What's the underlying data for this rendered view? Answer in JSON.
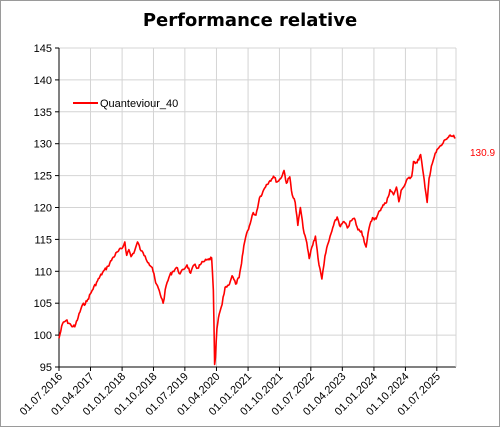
{
  "chart_data": {
    "type": "line",
    "title": "Performance relative",
    "xlabel": "",
    "ylabel": "",
    "ylim": [
      95,
      145
    ],
    "yticks": [
      95,
      100,
      105,
      110,
      115,
      120,
      125,
      130,
      135,
      140,
      145
    ],
    "xlim": [
      "2016-07-01",
      "2025-12-15"
    ],
    "xticks": [
      "01.07.2016",
      "01.04.2017",
      "01.01.2018",
      "01.10.2018",
      "01.07.2019",
      "01.04.2020",
      "01.01.2021",
      "01.10.2021",
      "01.07.2022",
      "01.04.2023",
      "01.01.2024",
      "01.10.2024",
      "01.07.2025"
    ],
    "grid": true,
    "legend": "top-left",
    "end_label": "130.9",
    "series": [
      {
        "name": "Quanteviour_40",
        "color": "#ff0000",
        "points": [
          [
            "2016-07-01",
            99.5
          ],
          [
            "2016-08-01",
            101.8
          ],
          [
            "2016-09-01",
            102.3
          ],
          [
            "2016-10-15",
            101.5
          ],
          [
            "2016-11-15",
            101.3
          ],
          [
            "2016-12-15",
            102.8
          ],
          [
            "2017-01-15",
            104.5
          ],
          [
            "2017-03-01",
            105.3
          ],
          [
            "2017-04-15",
            107.0
          ],
          [
            "2017-06-01",
            108.5
          ],
          [
            "2017-07-15",
            109.8
          ],
          [
            "2017-09-01",
            110.8
          ],
          [
            "2017-10-15",
            112.2
          ],
          [
            "2017-12-01",
            113.2
          ],
          [
            "2018-01-01",
            113.6
          ],
          [
            "2018-01-25",
            114.6
          ],
          [
            "2018-02-10",
            112.5
          ],
          [
            "2018-03-01",
            113.4
          ],
          [
            "2018-03-20",
            112.3
          ],
          [
            "2018-04-20",
            113.2
          ],
          [
            "2018-05-15",
            114.6
          ],
          [
            "2018-06-15",
            113.2
          ],
          [
            "2018-07-20",
            112.4
          ],
          [
            "2018-08-20",
            111.3
          ],
          [
            "2018-09-20",
            110.6
          ],
          [
            "2018-10-20",
            108.2
          ],
          [
            "2018-11-20",
            107.0
          ],
          [
            "2018-12-24",
            105.0
          ],
          [
            "2019-01-20",
            107.8
          ],
          [
            "2019-02-20",
            109.4
          ],
          [
            "2019-03-20",
            110.0
          ],
          [
            "2019-04-20",
            110.6
          ],
          [
            "2019-05-20",
            109.6
          ],
          [
            "2019-06-20",
            110.3
          ],
          [
            "2019-07-20",
            111.0
          ],
          [
            "2019-08-20",
            109.7
          ],
          [
            "2019-09-20",
            111.0
          ],
          [
            "2019-10-20",
            110.5
          ],
          [
            "2019-11-20",
            111.2
          ],
          [
            "2019-12-20",
            111.6
          ],
          [
            "2020-01-20",
            111.8
          ],
          [
            "2020-02-19",
            112.1
          ],
          [
            "2020-03-05",
            107.0
          ],
          [
            "2020-03-16",
            95.4
          ],
          [
            "2020-03-23",
            96.5
          ],
          [
            "2020-04-05",
            101.0
          ],
          [
            "2020-04-25",
            103.3
          ],
          [
            "2020-05-20",
            104.8
          ],
          [
            "2020-06-15",
            107.5
          ],
          [
            "2020-07-15",
            107.8
          ],
          [
            "2020-08-15",
            109.3
          ],
          [
            "2020-09-15",
            108.0
          ],
          [
            "2020-10-15",
            109.0
          ],
          [
            "2020-11-05",
            111.2
          ],
          [
            "2020-11-25",
            114.0
          ],
          [
            "2020-12-20",
            116.0
          ],
          [
            "2021-01-20",
            117.5
          ],
          [
            "2021-02-15",
            119.2
          ],
          [
            "2021-03-10",
            118.8
          ],
          [
            "2021-04-10",
            121.5
          ],
          [
            "2021-05-10",
            122.5
          ],
          [
            "2021-06-10",
            123.6
          ],
          [
            "2021-07-10",
            124.2
          ],
          [
            "2021-08-10",
            124.9
          ],
          [
            "2021-09-10",
            124.0
          ],
          [
            "2021-10-10",
            124.5
          ],
          [
            "2021-11-10",
            125.8
          ],
          [
            "2021-12-01",
            123.8
          ],
          [
            "2021-12-30",
            124.8
          ],
          [
            "2022-01-20",
            122.0
          ],
          [
            "2022-02-15",
            120.8
          ],
          [
            "2022-03-10",
            117.2
          ],
          [
            "2022-04-01",
            120.0
          ],
          [
            "2022-04-25",
            116.8
          ],
          [
            "2022-05-20",
            115.0
          ],
          [
            "2022-06-17",
            112.0
          ],
          [
            "2022-07-10",
            113.8
          ],
          [
            "2022-08-10",
            115.5
          ],
          [
            "2022-09-10",
            111.0
          ],
          [
            "2022-10-05",
            108.8
          ],
          [
            "2022-11-01",
            112.4
          ],
          [
            "2022-12-01",
            114.5
          ],
          [
            "2023-01-15",
            117.2
          ],
          [
            "2023-02-15",
            118.5
          ],
          [
            "2023-03-15",
            117.0
          ],
          [
            "2023-04-15",
            117.8
          ],
          [
            "2023-05-15",
            116.8
          ],
          [
            "2023-06-15",
            117.9
          ],
          [
            "2023-07-15",
            118.3
          ],
          [
            "2023-08-15",
            116.5
          ],
          [
            "2023-09-15",
            116.3
          ],
          [
            "2023-10-25",
            113.8
          ],
          [
            "2023-11-20",
            116.8
          ],
          [
            "2023-12-20",
            118.4
          ],
          [
            "2024-01-20",
            118.2
          ],
          [
            "2024-02-20",
            119.5
          ],
          [
            "2024-03-20",
            120.4
          ],
          [
            "2024-04-20",
            120.8
          ],
          [
            "2024-05-20",
            122.8
          ],
          [
            "2024-06-20",
            122.0
          ],
          [
            "2024-07-15",
            123.2
          ],
          [
            "2024-08-05",
            120.9
          ],
          [
            "2024-08-25",
            122.7
          ],
          [
            "2024-09-25",
            123.5
          ],
          [
            "2024-10-25",
            124.6
          ],
          [
            "2024-11-25",
            124.9
          ],
          [
            "2024-12-10",
            127.2
          ],
          [
            "2025-01-10",
            127.0
          ],
          [
            "2025-02-10",
            128.3
          ],
          [
            "2025-02-28",
            126.0
          ],
          [
            "2025-03-20",
            123.2
          ],
          [
            "2025-04-08",
            120.8
          ],
          [
            "2025-04-25",
            124.6
          ],
          [
            "2025-05-15",
            126.5
          ],
          [
            "2025-06-10",
            128.0
          ],
          [
            "2025-07-10",
            129.2
          ],
          [
            "2025-08-10",
            129.7
          ],
          [
            "2025-09-10",
            130.6
          ],
          [
            "2025-10-10",
            131.0
          ],
          [
            "2025-11-10",
            131.2
          ],
          [
            "2025-12-10",
            130.9
          ]
        ]
      }
    ]
  }
}
